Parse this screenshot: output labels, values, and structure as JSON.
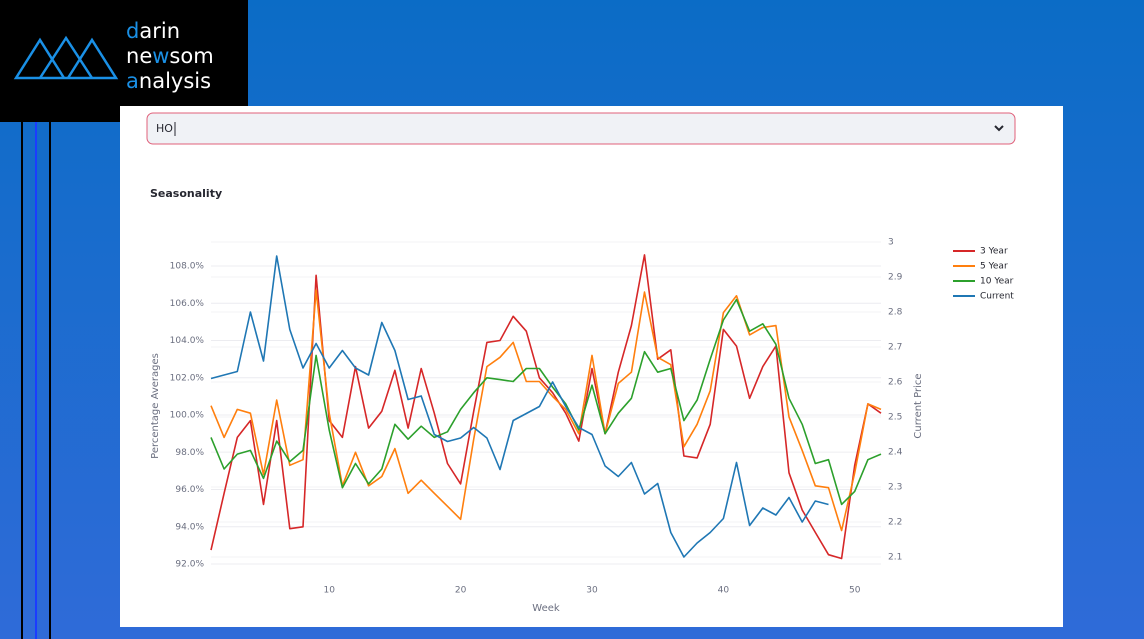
{
  "logo": {
    "lines": [
      "darin",
      "newsom",
      "analysis"
    ]
  },
  "select": {
    "value": "HO"
  },
  "chart_data": {
    "type": "line",
    "title": "Seasonality",
    "xlabel": "Week",
    "ylabel": "Percentage Averages",
    "y2label": "Current Price",
    "x": [
      1,
      2,
      3,
      4,
      5,
      6,
      7,
      8,
      9,
      10,
      11,
      12,
      13,
      14,
      15,
      16,
      17,
      18,
      19,
      20,
      21,
      22,
      23,
      24,
      25,
      26,
      27,
      28,
      29,
      30,
      31,
      32,
      33,
      34,
      35,
      36,
      37,
      38,
      39,
      40,
      41,
      42,
      43,
      44,
      45,
      46,
      47,
      48,
      49,
      50,
      51,
      52
    ],
    "xlim": [
      1,
      52
    ],
    "xticks": [
      10,
      20,
      30,
      40,
      50
    ],
    "ylim": [
      91.68,
      109.29
    ],
    "yticks": [
      {
        "value": 92,
        "label": "92.0%"
      },
      {
        "value": 94,
        "label": "94.0%"
      },
      {
        "value": 96,
        "label": "96.0%"
      },
      {
        "value": 98,
        "label": "98.0%"
      },
      {
        "value": 100,
        "label": "100.0%"
      },
      {
        "value": 102,
        "label": "102.0%"
      },
      {
        "value": 104,
        "label": "104.0%"
      },
      {
        "value": 106,
        "label": "106.0%"
      },
      {
        "value": 108,
        "label": "108.0%"
      }
    ],
    "y2lim": [
      2.063,
      3.0
    ],
    "y2ticks": [
      2.1,
      2.2,
      2.3,
      2.4,
      2.5,
      2.6,
      2.7,
      2.8,
      2.9,
      3
    ],
    "grid": true,
    "legend": "right",
    "series": [
      {
        "name": "3 Year",
        "color": "#d62728",
        "values": [
          92.75,
          95.8,
          98.8,
          99.7,
          95.2,
          99.7,
          93.9,
          94.0,
          107.5,
          99.7,
          98.8,
          102.6,
          99.3,
          100.2,
          102.4,
          99.3,
          102.5,
          100.1,
          97.4,
          96.3,
          100.2,
          103.9,
          104.0,
          105.3,
          104.5,
          102.0,
          101.2,
          100.1,
          98.6,
          102.5,
          99.0,
          102.3,
          104.8,
          108.6,
          103.0,
          103.5,
          97.8,
          97.7,
          99.5,
          104.6,
          103.7,
          100.9,
          102.6,
          103.7,
          96.9,
          94.9,
          93.7,
          92.5,
          92.3,
          97.3,
          100.6,
          100.1
        ]
      },
      {
        "name": "5 Year",
        "color": "#ff7f0e",
        "values": [
          100.5,
          98.8,
          100.3,
          100.1,
          96.8,
          100.8,
          97.3,
          97.6,
          106.7,
          100.1,
          96.2,
          98.0,
          96.2,
          96.7,
          98.2,
          95.8,
          96.5,
          95.8,
          95.1,
          94.4,
          98.7,
          102.6,
          103.1,
          103.9,
          101.8,
          101.8,
          101.0,
          100.3,
          99.0,
          103.2,
          99.0,
          101.7,
          102.3,
          106.6,
          103.1,
          102.7,
          98.3,
          99.5,
          101.3,
          105.5,
          106.4,
          104.3,
          104.7,
          104.8,
          99.9,
          98.1,
          96.2,
          96.1,
          93.8,
          96.9,
          100.6,
          100.3
        ]
      },
      {
        "name": "10 Year",
        "color": "#2ca02c",
        "values": [
          98.8,
          97.1,
          97.9,
          98.1,
          96.6,
          98.6,
          97.5,
          98.1,
          103.2,
          99.2,
          96.1,
          97.4,
          96.3,
          97.1,
          99.5,
          98.7,
          99.4,
          98.8,
          99.1,
          100.3,
          101.2,
          102.0,
          101.9,
          101.8,
          102.5,
          102.5,
          101.5,
          100.6,
          99.2,
          101.6,
          99.0,
          100.1,
          100.9,
          103.4,
          102.3,
          102.5,
          99.7,
          100.8,
          103.0,
          105.1,
          106.2,
          104.5,
          104.9,
          103.8,
          100.9,
          99.5,
          97.4,
          97.6,
          95.2,
          95.9,
          97.6,
          97.9
        ]
      },
      {
        "name": "Current",
        "color": "#1f77b4",
        "axis": "y2",
        "values": [
          2.61,
          2.62,
          2.63,
          2.8,
          2.66,
          2.96,
          2.75,
          2.64,
          2.71,
          2.64,
          2.69,
          2.64,
          2.62,
          2.77,
          2.69,
          2.55,
          2.56,
          2.45,
          2.43,
          2.44,
          2.47,
          2.44,
          2.35,
          2.49,
          2.51,
          2.53,
          2.6,
          2.53,
          2.47,
          2.45,
          2.36,
          2.33,
          2.37,
          2.28,
          2.31,
          2.17,
          2.1,
          2.14,
          2.17,
          2.21,
          2.37,
          2.19,
          2.24,
          2.22,
          2.27,
          2.2,
          2.26,
          2.25,
          null,
          null,
          null,
          null
        ]
      }
    ]
  }
}
